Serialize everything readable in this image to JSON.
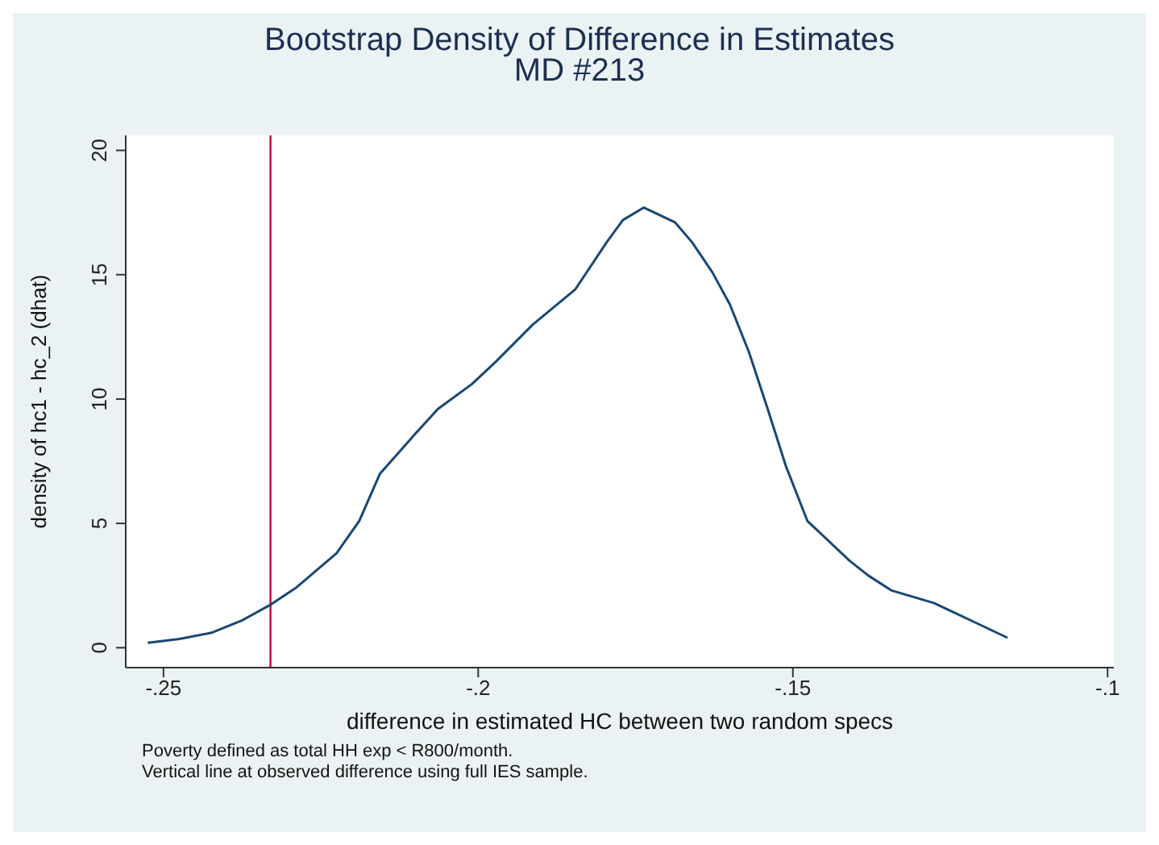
{
  "chart_data": {
    "type": "line",
    "title": "Bootstrap Density of Difference in Estimates",
    "subtitle": "MD #213",
    "xlabel": "difference in estimated HC between two random specs",
    "ylabel": "density of hc1 - hc_2 (dhat)",
    "x": [
      -0.2525,
      -0.2475,
      -0.2424,
      -0.2375,
      -0.2332,
      -0.229,
      -0.2225,
      -0.2189,
      -0.2156,
      -0.21,
      -0.2064,
      -0.201,
      -0.1972,
      -0.1913,
      -0.1846,
      -0.1796,
      -0.177,
      -0.1737,
      -0.1687,
      -0.166,
      -0.1628,
      -0.16,
      -0.157,
      -0.154,
      -0.1511,
      -0.1477,
      -0.141,
      -0.138,
      -0.1343,
      -0.1276,
      -0.1209,
      -0.1159
    ],
    "series": [
      {
        "color": "#1a476f",
        "values": [
          0.2,
          0.35,
          0.6,
          1.1,
          1.7,
          2.4,
          3.8,
          5.1,
          7.0,
          8.6,
          9.6,
          10.6,
          11.5,
          13.0,
          14.4,
          16.3,
          17.2,
          17.7,
          17.1,
          16.3,
          15.1,
          13.8,
          11.9,
          9.6,
          7.3,
          5.1,
          3.5,
          2.9,
          2.3,
          1.8,
          1.0,
          0.4
        ]
      }
    ],
    "xlim": [
      -0.256,
      -0.099
    ],
    "xticks": [
      {
        "value": -0.25,
        "label": "-.25"
      },
      {
        "value": -0.2,
        "label": "-.2"
      },
      {
        "value": -0.15,
        "label": "-.15"
      },
      {
        "value": -0.1,
        "label": "-.1"
      }
    ],
    "ylim": [
      -0.8,
      20.6
    ],
    "yticks": [
      0,
      5,
      10,
      15,
      20
    ],
    "ref_lines": [
      {
        "axis": "x",
        "value": -0.233,
        "color": "#c10534"
      }
    ],
    "annotations": [
      "Poverty defined as total HH exp < R800/month.",
      "Vertical line at observed difference using full IES sample."
    ],
    "legend": false,
    "marker": "none",
    "line_style": "solid"
  }
}
